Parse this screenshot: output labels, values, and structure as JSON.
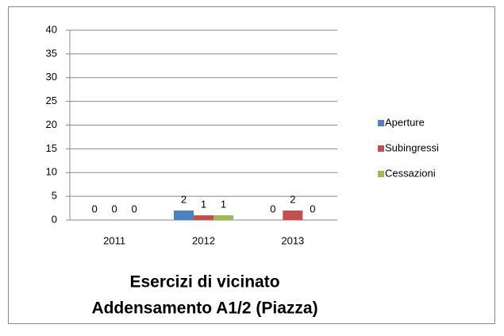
{
  "chart_data": {
    "type": "bar",
    "title": "Esercizi di vicinato",
    "subtitle": "Addensamento  A1/2 (Piazza)",
    "categories": [
      "2011",
      "2012",
      "2013"
    ],
    "series": [
      {
        "name": "Aperture",
        "color": "#4f81bd",
        "values": [
          0,
          2,
          0
        ]
      },
      {
        "name": "Subingressi",
        "color": "#c0504d",
        "values": [
          0,
          1,
          2
        ]
      },
      {
        "name": "Cessazioni",
        "color": "#9bbb59",
        "values": [
          0,
          1,
          0
        ]
      }
    ],
    "ylim": [
      0,
      40
    ],
    "yticks": [
      0,
      5,
      10,
      15,
      20,
      25,
      30,
      35,
      40
    ],
    "grid": true,
    "legend": "right"
  }
}
